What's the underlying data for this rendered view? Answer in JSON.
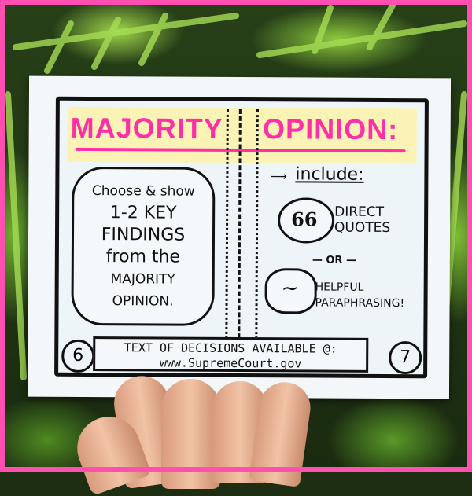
{
  "zine": {
    "title_left": "MAJORITY",
    "title_right": "OPINION:",
    "cloud_line1": "Choose & show",
    "cloud_line2": "1-2 KEY",
    "cloud_line3": "FINDINGS",
    "cloud_line4": "from the",
    "cloud_line5": "MAJORITY",
    "cloud_line6": "OPINION.",
    "include": "include:",
    "quote_mark": "66",
    "direct_quotes_1": "DIRECT",
    "direct_quotes_2": "QUOTES",
    "or": "— OR —",
    "tilde": "~",
    "helpful_1": "HELPFUL",
    "helpful_2": "PARAPHRASING!",
    "footer_line1": "TEXT OF DECISIONS AVAILABLE @:",
    "footer_line2": "www.SupremeCourt.gov",
    "page_left": "6",
    "page_right": "7"
  },
  "colors": {
    "title": "#ff2fa8",
    "highlight": "#fbf3b6",
    "frame": "#ff4fb0",
    "foliage": "#8fcb3e"
  }
}
